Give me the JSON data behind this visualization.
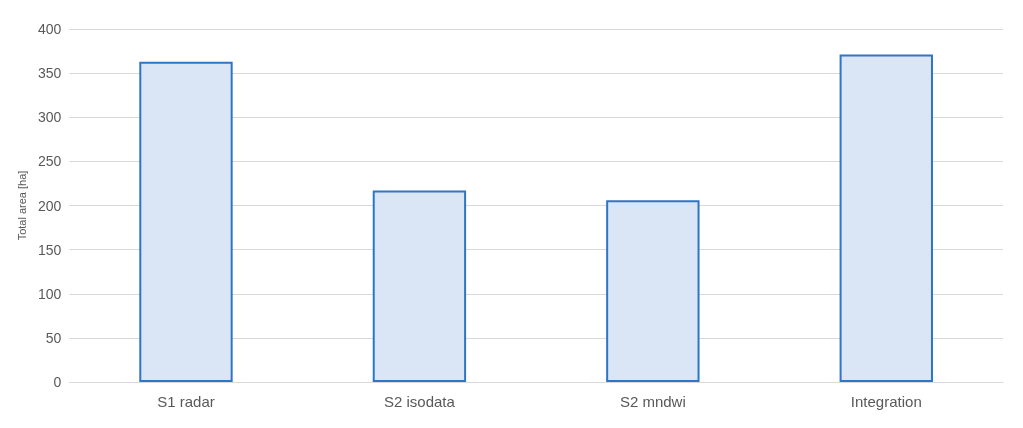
{
  "chart_data": {
    "type": "bar",
    "ylabel": "Total area [ha]",
    "categories": [
      "S1 radar",
      "S2 isodata",
      "S2 mndwi",
      "Integration"
    ],
    "values": [
      363,
      217,
      206,
      371
    ],
    "color": "#dae6f6",
    "ylim": [
      0,
      400
    ],
    "yticks": [
      0,
      50,
      100,
      150,
      200,
      250,
      300,
      350,
      400
    ],
    "grid": "y"
  }
}
